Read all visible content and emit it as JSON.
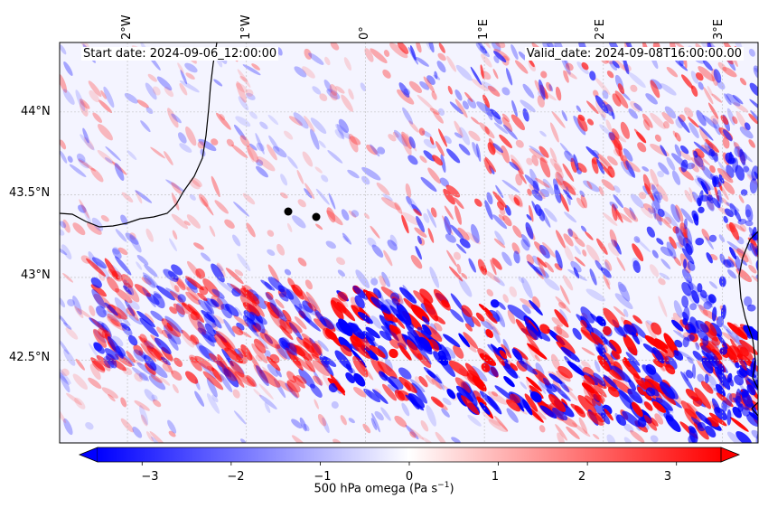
{
  "header": {
    "start_date": "Start date: 2024-09-06_12:00:00",
    "valid_date": "Valid_date: 2024-09-08T16:00:00.00"
  },
  "map": {
    "lon_labels": [
      "2°W",
      "1°W",
      "0°",
      "1°E",
      "2°E",
      "3°E"
    ],
    "lat_labels": [
      "44°N",
      "43.5°N",
      "43°N",
      "42.5°N"
    ],
    "extent": {
      "lon_min": -2.57,
      "lon_max": 3.3,
      "lat_min": 42.0,
      "lat_max": 44.42
    },
    "gridlines": true,
    "markers": [
      {
        "name": "point-1",
        "lon": -0.66,
        "lat": 43.39
      },
      {
        "name": "point-2",
        "lon": -0.41,
        "lat": 43.36
      }
    ]
  },
  "colorbar": {
    "ticks": [
      "−3",
      "−2",
      "−1",
      "0",
      "1",
      "2",
      "3"
    ],
    "title_main": "500 hPa omega (Pa s",
    "title_sup": "−1",
    "title_end": ")",
    "range": [
      -3.5,
      3.5
    ],
    "colormap": "bwr",
    "colors": {
      "low": "#0000ff",
      "mid": "#ffffff",
      "high": "#ff0000"
    }
  }
}
